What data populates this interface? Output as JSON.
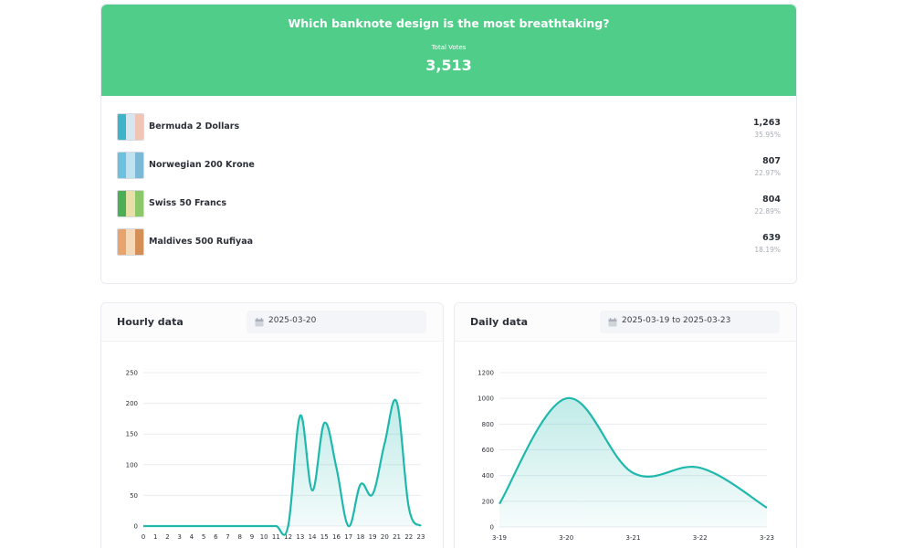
{
  "poll": {
    "question": "Which banknote design is the most breathtaking?",
    "total_label": "Total Votes",
    "total_votes": "3,513",
    "header_color": "#50ce89",
    "options": [
      {
        "name": "Bermuda 2 Dollars",
        "votes": "1,263",
        "percent": "35.95%",
        "thumb_colors": [
          "#3fb3c7",
          "#d7e7ef",
          "#f0c5b5"
        ]
      },
      {
        "name": "Norwegian 200 Krone",
        "votes": "807",
        "percent": "22.97%",
        "thumb_colors": [
          "#6cc2de",
          "#bfe2ee",
          "#7cb9d6"
        ]
      },
      {
        "name": "Swiss 50 Francs",
        "votes": "804",
        "percent": "22.89%",
        "thumb_colors": [
          "#4cae55",
          "#e8e0a8",
          "#8cc76a"
        ]
      },
      {
        "name": "Maldives 500 Rufiyaa",
        "votes": "639",
        "percent": "18.19%",
        "thumb_colors": [
          "#e7a46c",
          "#f3d9b8",
          "#d48e57"
        ]
      }
    ]
  },
  "hourly": {
    "title": "Hourly data",
    "date": "2025-03-20",
    "calendar_icon": "calendar-icon"
  },
  "daily": {
    "title": "Daily data",
    "date": "2025-03-19 to 2025-03-23",
    "calendar_icon": "calendar-icon"
  },
  "chart_data": [
    {
      "type": "area",
      "title": "Hourly data",
      "x": [
        0,
        1,
        2,
        3,
        4,
        5,
        6,
        7,
        8,
        9,
        10,
        11,
        12,
        13,
        14,
        15,
        16,
        17,
        18,
        19,
        20,
        21,
        22,
        23
      ],
      "values": [
        0,
        0,
        0,
        0,
        0,
        0,
        0,
        0,
        0,
        0,
        0,
        0,
        0,
        180,
        58,
        168,
        95,
        0,
        68,
        52,
        135,
        202,
        30,
        0
      ],
      "ylim": [
        0,
        250
      ],
      "yticks": [
        0,
        50,
        100,
        150,
        200,
        250
      ],
      "grid": true,
      "line_color": "#1fb8ac"
    },
    {
      "type": "area",
      "title": "Daily data",
      "categories": [
        "3-19",
        "3-20",
        "3-21",
        "3-22",
        "3-23"
      ],
      "values": [
        180,
        1000,
        420,
        460,
        150
      ],
      "ylim": [
        0,
        1200
      ],
      "yticks": [
        0,
        200,
        400,
        600,
        800,
        1000,
        1200
      ],
      "grid": true,
      "line_color": "#1fb8ac"
    }
  ]
}
